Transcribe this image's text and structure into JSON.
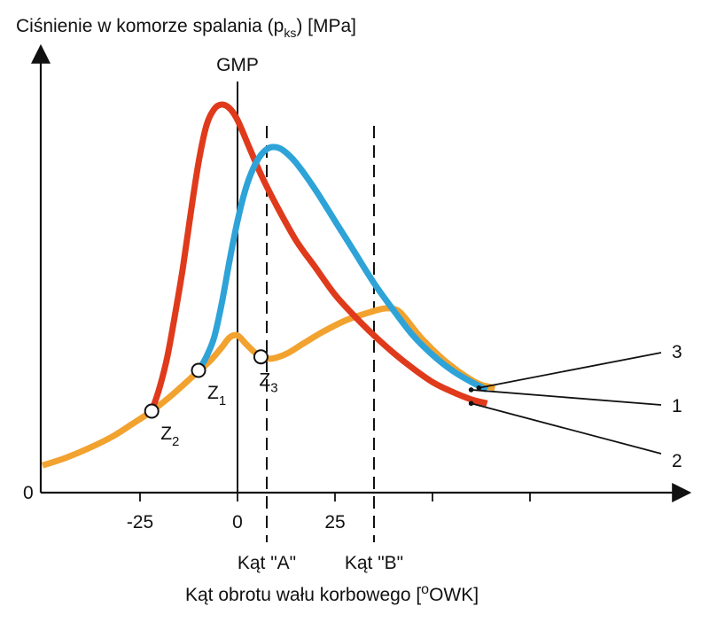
{
  "colors": {
    "red": "#e03a1c",
    "blue": "#2ea3d8",
    "orange": "#f2a22e",
    "axis": "#111111",
    "marker_fill": "#ffffff"
  },
  "chart_data": {
    "type": "line",
    "ylabel": {
      "text": "Ciśnienie w komorze spalania (p",
      "subscript": "ks",
      "suffix": ") [MPa]"
    },
    "xlabel": {
      "prefix": "Kąt obrotu wału korbowego [",
      "superscript": "o",
      "suffix": "OWK]"
    },
    "x_ticks": [
      {
        "value": -25,
        "label": "-25"
      },
      {
        "value": 0,
        "label": "0"
      },
      {
        "value": 25,
        "label": "25"
      },
      {
        "value": 50,
        "label": ""
      },
      {
        "value": 75,
        "label": ""
      }
    ],
    "y_zero_label": "0",
    "xlim": [
      -50,
      90
    ],
    "ylim": [
      0,
      100
    ],
    "reference_lines": [
      {
        "x": 0,
        "label": "GMP",
        "style": "solid"
      },
      {
        "x": 7.5,
        "label": "Kąt \"A\"",
        "style": "dashed"
      },
      {
        "x": 35,
        "label": "Kąt \"B\"",
        "style": "dashed"
      }
    ],
    "series": [
      {
        "name": "3",
        "color": "orange",
        "points": [
          [
            -50,
            7
          ],
          [
            -44,
            9
          ],
          [
            -38,
            11.5
          ],
          [
            -32,
            14.5
          ],
          [
            -27,
            17.7
          ],
          [
            -22,
            21
          ],
          [
            -17,
            25
          ],
          [
            -12,
            29.5
          ],
          [
            -7,
            34
          ],
          [
            -4,
            37.5
          ],
          [
            -2,
            40
          ],
          [
            0,
            40.5
          ],
          [
            2,
            38.5
          ],
          [
            4,
            36.5
          ],
          [
            6,
            35
          ],
          [
            8,
            34.5
          ],
          [
            10,
            34.8
          ],
          [
            13,
            36
          ],
          [
            17,
            38.5
          ],
          [
            22,
            41.5
          ],
          [
            28,
            44.5
          ],
          [
            34,
            46.5
          ],
          [
            38,
            47.5
          ],
          [
            41,
            47
          ],
          [
            43,
            45
          ],
          [
            47,
            40
          ],
          [
            52,
            35
          ],
          [
            57,
            31
          ],
          [
            62,
            28
          ],
          [
            66,
            27
          ]
        ]
      },
      {
        "name": "2",
        "color": "red",
        "points": [
          [
            -22,
            21
          ],
          [
            -20,
            27
          ],
          [
            -18,
            35
          ],
          [
            -16,
            46
          ],
          [
            -14,
            58
          ],
          [
            -12,
            72
          ],
          [
            -10,
            85
          ],
          [
            -8,
            94.5
          ],
          [
            -6,
            98.8
          ],
          [
            -4,
            100
          ],
          [
            -2,
            99
          ],
          [
            0,
            96
          ],
          [
            3,
            89
          ],
          [
            6,
            82
          ],
          [
            10,
            74
          ],
          [
            15,
            65
          ],
          [
            20,
            58
          ],
          [
            25,
            51
          ],
          [
            30,
            45.5
          ],
          [
            35,
            40.5
          ],
          [
            40,
            36
          ],
          [
            45,
            32
          ],
          [
            50,
            28.5
          ],
          [
            55,
            26
          ],
          [
            60,
            24
          ],
          [
            64,
            23
          ]
        ]
      },
      {
        "name": "1",
        "color": "blue",
        "points": [
          [
            -10,
            31.5
          ],
          [
            -8,
            35
          ],
          [
            -6,
            40
          ],
          [
            -4,
            49
          ],
          [
            -2,
            60
          ],
          [
            0,
            70
          ],
          [
            2,
            78
          ],
          [
            4,
            83.5
          ],
          [
            6,
            87
          ],
          [
            8,
            88.8
          ],
          [
            10,
            89
          ],
          [
            12,
            88
          ],
          [
            15,
            85
          ],
          [
            20,
            78
          ],
          [
            25,
            70
          ],
          [
            30,
            62
          ],
          [
            35,
            54
          ],
          [
            40,
            47
          ],
          [
            45,
            40.5
          ],
          [
            50,
            35.5
          ],
          [
            55,
            31.5
          ],
          [
            60,
            28.5
          ],
          [
            64,
            26.5
          ]
        ]
      }
    ],
    "markers": [
      {
        "x": -22,
        "y": 21,
        "label": "Z",
        "subscript": "2"
      },
      {
        "x": -10,
        "y": 31.5,
        "label": "Z",
        "subscript": "1"
      },
      {
        "x": 6,
        "y": 35,
        "label": "Z",
        "subscript": "3"
      }
    ]
  }
}
